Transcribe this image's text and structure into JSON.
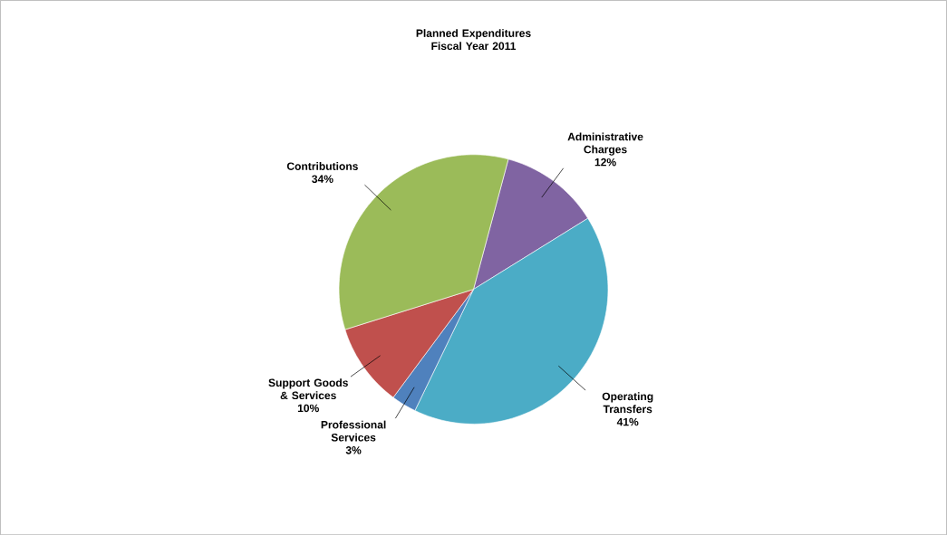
{
  "chart_data": {
    "type": "pie",
    "title": "Planned Expenditures Fiscal Year 2011",
    "categories": [
      "Administrative Charges",
      "Operating Transfers",
      "Professional Services",
      "Support Goods & Services",
      "Contributions"
    ],
    "values": [
      12,
      41,
      3,
      10,
      34
    ],
    "colors": [
      "#8064a2",
      "#4bacc6",
      "#4f81bd",
      "#c0504d",
      "#9bbb59"
    ],
    "value_labels": [
      "12%",
      "41%",
      "3%",
      "10%",
      "34%"
    ]
  }
}
